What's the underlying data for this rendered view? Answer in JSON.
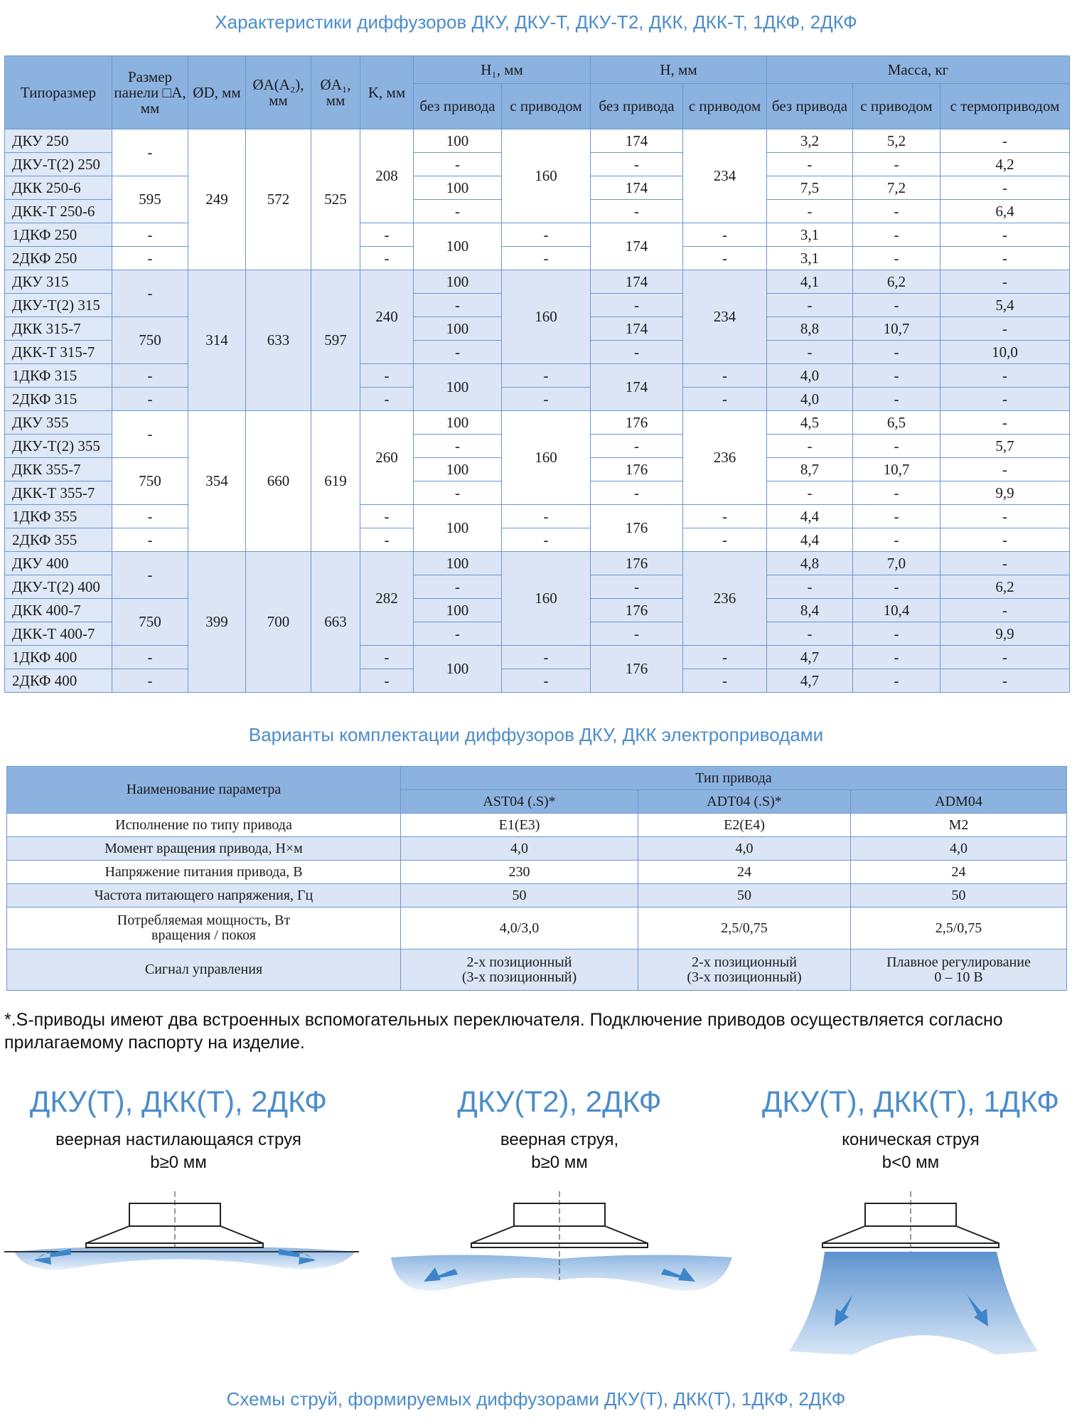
{
  "title": "Характеристики диффузоров ДКУ, ДКУ-Т, ДКУ-Т2, ДКК, ДКК-Т, 1ДКФ, 2ДКФ",
  "table1": {
    "header": [
      [
        "Типоразмер",
        "Размер панели □A, мм",
        "ØD, мм",
        "ØA(A₂), мм",
        "ØA₁, мм",
        "K, мм",
        "H₁, мм",
        "H, мм",
        "Масса, кг"
      ],
      [
        "без привода",
        "с приводом",
        "без привода",
        "с приводом",
        "без привода",
        "с приводом",
        "с термоприводом"
      ]
    ],
    "rows": [
      [
        "ДКУ 250",
        "-",
        "249",
        "572",
        "525",
        "208",
        "100",
        "160",
        "174",
        "234",
        "3,2",
        "5,2",
        "-"
      ],
      [
        "ДКУ-Т(2) 250",
        "-",
        "-",
        "-",
        "-",
        "4,2"
      ],
      [
        "ДКК 250-6",
        "595",
        "100",
        "174",
        "7,5",
        "7,2",
        "-"
      ],
      [
        "ДКК-Т 250-6",
        "-",
        "-",
        "-",
        "-",
        "6,4"
      ],
      [
        "1ДКФ 250",
        "-",
        "-",
        "100",
        "-",
        "174",
        "-",
        "3,1",
        "-",
        "-"
      ],
      [
        "2ДКФ 250",
        "-",
        "-",
        "-",
        "-",
        "3,1",
        "-",
        "-"
      ],
      [
        "ДКУ 315",
        "-",
        "314",
        "633",
        "597",
        "240",
        "100",
        "160",
        "174",
        "234",
        "4,1",
        "6,2",
        "-"
      ],
      [
        "ДКУ-Т(2) 315",
        "-",
        "-",
        "-",
        "-",
        "5,4"
      ],
      [
        "ДКК 315-7",
        "750",
        "100",
        "174",
        "8,8",
        "10,7",
        "-"
      ],
      [
        "ДКК-Т 315-7",
        "-",
        "-",
        "-",
        "-",
        "10,0"
      ],
      [
        "1ДКФ 315",
        "-",
        "-",
        "100",
        "-",
        "174",
        "-",
        "4,0",
        "-",
        "-"
      ],
      [
        "2ДКФ 315",
        "-",
        "-",
        "-",
        "-",
        "4,0",
        "-",
        "-"
      ],
      [
        "ДКУ 355",
        "-",
        "354",
        "660",
        "619",
        "260",
        "100",
        "160",
        "176",
        "236",
        "4,5",
        "6,5",
        "-"
      ],
      [
        "ДКУ-Т(2) 355",
        "-",
        "-",
        "-",
        "-",
        "5,7"
      ],
      [
        "ДКК 355-7",
        "750",
        "100",
        "176",
        "8,7",
        "10,7",
        "-"
      ],
      [
        "ДКК-Т 355-7",
        "-",
        "-",
        "-",
        "-",
        "9,9"
      ],
      [
        "1ДКФ 355",
        "-",
        "-",
        "100",
        "-",
        "176",
        "-",
        "4,4",
        "-",
        "-"
      ],
      [
        "2ДКФ 355",
        "-",
        "-",
        "-",
        "-",
        "4,4",
        "-",
        "-"
      ],
      [
        "ДКУ 400",
        "-",
        "399",
        "700",
        "663",
        "282",
        "100",
        "160",
        "176",
        "236",
        "4,8",
        "7,0",
        "-"
      ],
      [
        "ДКУ-Т(2) 400",
        "-",
        "-",
        "-",
        "-",
        "6,2"
      ],
      [
        "ДКК 400-7",
        "750",
        "100",
        "176",
        "8,4",
        "10,4",
        "-"
      ],
      [
        "ДКК-Т 400-7",
        "-",
        "-",
        "-",
        "-",
        "9,9"
      ],
      [
        "1ДКФ 400",
        "-",
        "-",
        "100",
        "-",
        "176",
        "-",
        "4,7",
        "-",
        "-"
      ],
      [
        "2ДКФ 400",
        "-",
        "-",
        "-",
        "-",
        "4,7",
        "-",
        "-"
      ]
    ]
  },
  "table2_title": "Варианты комплектации диффузоров ДКУ, ДКК электроприводами",
  "table2": {
    "header": [
      [
        "Наименование параметра",
        "Тип привода"
      ],
      [
        "AST04 (.S)*",
        "ADT04 (.S)*",
        "ADM04"
      ]
    ],
    "rows": [
      [
        "Исполнение по типу привода",
        "E1(E3)",
        "E2(E4)",
        "M2"
      ],
      [
        "Момент вращения привода, Н×м",
        "4,0",
        "4,0",
        "4,0"
      ],
      [
        "Напряжение питания привода, В",
        "230",
        "24",
        "24"
      ],
      [
        "Частота питающего напряжения, Гц",
        "50",
        "50",
        "50"
      ],
      [
        "Потребляемая мощность, Вт\nвращения / покоя",
        "4,0/3,0",
        "2,5/0,75",
        "2,5/0,75"
      ],
      [
        "Сигнал управления",
        "2-х позиционный\n(3-х позиционный)",
        "2-х позиционный\n(3-х позиционный)",
        "Плавное регулирование\n0 – 10 В"
      ]
    ]
  },
  "footnote": "*.S-приводы имеют два встроенных вспомогательных переключателя. Подключение приводов осуществляется согласно прилагаемому паспорту на изделие.",
  "schemes": [
    {
      "title": "ДКУ(Т), ДКК(Т), 2ДКФ",
      "subtitle": "веерная настилающаяся струя\nb≥0 мм"
    },
    {
      "title": "ДКУ(Т2), 2ДКФ",
      "subtitle": "веерная струя,\nb≥0 мм"
    },
    {
      "title": "ДКУ(Т), ДКК(Т), 1ДКФ",
      "subtitle": "коническая струя\nb<0 мм"
    }
  ],
  "caption": "Схемы струй, формируемых диффузорами ДКУ(Т), ДКК(Т), 1ДКФ, 2ДКФ"
}
